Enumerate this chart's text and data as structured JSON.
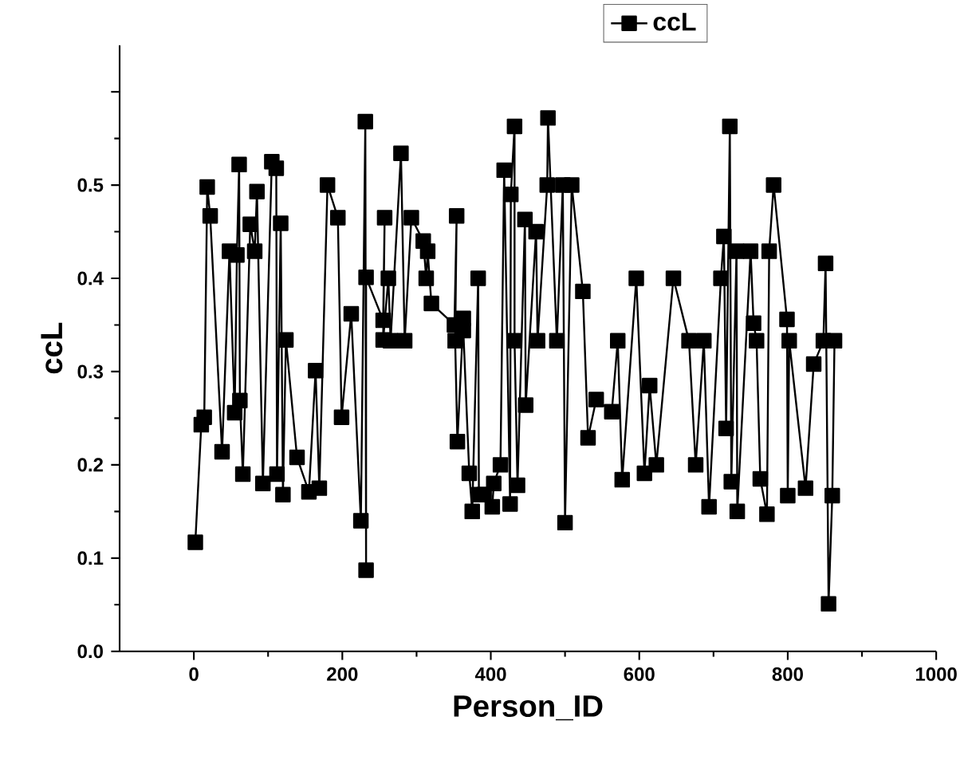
{
  "chart_data": {
    "type": "line",
    "xlabel": "Person_ID",
    "ylabel": "ccL",
    "xlim": [
      -100,
      1000
    ],
    "ylim": [
      0,
      0.65
    ],
    "xticks": [
      0,
      200,
      400,
      600,
      800,
      1000
    ],
    "yticks": [
      {
        "value": 0,
        "label": "0.0"
      },
      0.1,
      0.2,
      0.3,
      0.4,
      0.5,
      {
        "value": 0.6,
        "label": null
      }
    ],
    "legend": "top right",
    "marker": "square",
    "line_style": "solid",
    "grid": false,
    "series": [
      {
        "name": "ccL",
        "color": "#000000",
        "x": [
          2,
          10,
          14,
          18,
          22,
          38,
          48,
          55,
          58,
          61,
          62,
          66,
          76,
          82,
          85,
          93,
          105,
          111,
          112,
          117,
          120,
          124,
          139,
          155,
          164,
          169,
          180,
          194,
          199,
          212,
          225,
          231,
          232,
          232,
          255,
          257,
          255,
          262,
          265,
          279,
          284,
          293,
          309,
          313,
          315,
          320,
          351,
          354,
          352,
          355,
          363,
          363,
          371,
          375,
          383,
          384,
          391,
          402,
          404,
          413,
          418,
          426,
          427,
          432,
          432,
          436,
          446,
          447,
          461,
          463,
          476,
          477,
          489,
          497,
          500,
          509,
          524,
          531,
          542,
          563,
          571,
          577,
          596,
          607,
          614,
          623,
          646,
          667,
          676,
          687,
          694,
          710,
          714,
          717,
          722,
          724,
          731,
          732,
          750,
          754,
          758,
          763,
          772,
          775,
          781,
          799,
          800,
          802,
          824,
          835,
          848,
          851,
          855,
          860,
          863
        ],
        "values": [
          0.117,
          0.243,
          0.251,
          0.498,
          0.467,
          0.214,
          0.429,
          0.256,
          0.425,
          0.522,
          0.269,
          0.19,
          0.458,
          0.429,
          0.493,
          0.18,
          0.525,
          0.518,
          0.19,
          0.459,
          0.168,
          0.334,
          0.208,
          0.171,
          0.301,
          0.175,
          0.5,
          0.465,
          0.251,
          0.362,
          0.14,
          0.568,
          0.087,
          0.401,
          0.355,
          0.465,
          0.334,
          0.4,
          0.333,
          0.534,
          0.333,
          0.465,
          0.44,
          0.4,
          0.429,
          0.373,
          0.35,
          0.467,
          0.333,
          0.225,
          0.357,
          0.344,
          0.191,
          0.15,
          0.4,
          0.168,
          0.168,
          0.155,
          0.18,
          0.2,
          0.516,
          0.158,
          0.49,
          0.563,
          0.333,
          0.178,
          0.463,
          0.264,
          0.45,
          0.333,
          0.5,
          0.572,
          0.333,
          0.5,
          0.138,
          0.5,
          0.386,
          0.229,
          0.27,
          0.257,
          0.333,
          0.184,
          0.4,
          0.191,
          0.285,
          0.2,
          0.4,
          0.333,
          0.2,
          0.333,
          0.155,
          0.4,
          0.445,
          0.239,
          0.563,
          0.182,
          0.429,
          0.15,
          0.429,
          0.352,
          0.333,
          0.185,
          0.147,
          0.429,
          0.5,
          0.356,
          0.167,
          0.333,
          0.175,
          0.308,
          0.333,
          0.416,
          0.051,
          0.167,
          0.333
        ]
      }
    ]
  }
}
